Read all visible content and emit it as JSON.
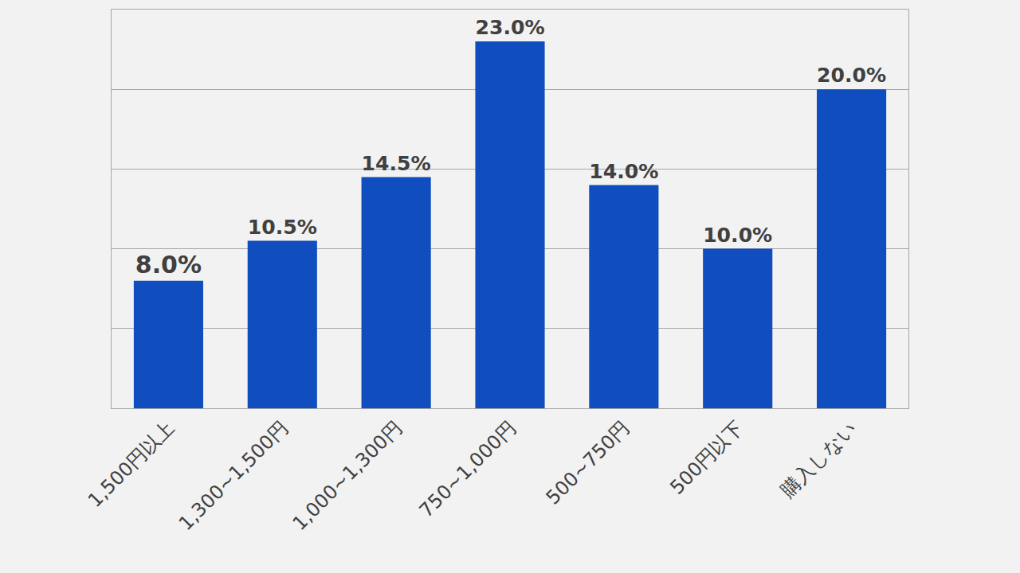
{
  "chart_data": {
    "type": "bar",
    "categories": [
      "1,500円以上",
      "1,300~1,500円",
      "1,000~1,300円",
      "750~1,000円",
      "500~750円",
      "500円以下",
      "購入しない"
    ],
    "values": [
      8.0,
      10.5,
      14.5,
      23.0,
      14.0,
      10.0,
      20.0
    ],
    "value_labels": [
      "8.0%",
      "10.5%",
      "14.5%",
      "23.0%",
      "14.0%",
      "10.0%",
      "20.0%"
    ],
    "color": "#104ec0",
    "ylim": [
      0,
      25
    ],
    "yticks": [
      0,
      5,
      10,
      15,
      20,
      25
    ],
    "grid": true,
    "data_labels": true,
    "tick_labels": "x"
  }
}
